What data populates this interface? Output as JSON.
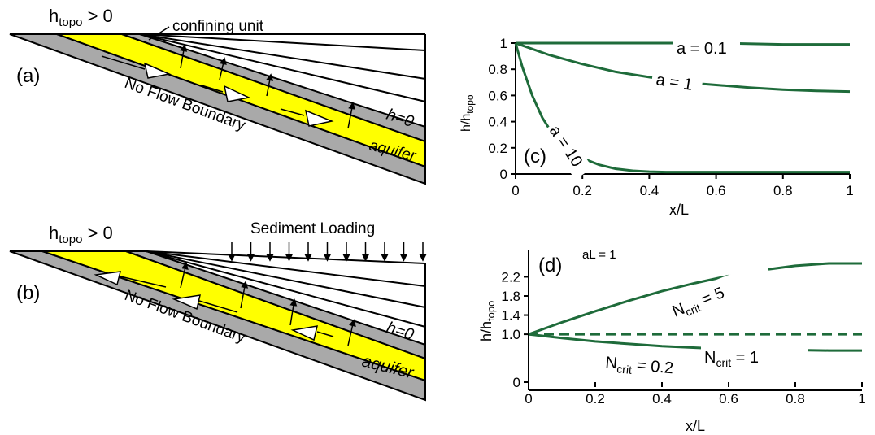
{
  "panel_a": {
    "panel_label": "(a)",
    "htopo": "h",
    "htopo_sub": "topo",
    "htopo_rest": " > 0",
    "confining_label": "confining unit",
    "boundary_label": "No Flow Boundary",
    "h0_label": "h=0",
    "aquifer_label": "aquifer"
  },
  "panel_b": {
    "panel_label": "(b)",
    "htopo": "h",
    "htopo_sub": "topo",
    "htopo_rest": " > 0",
    "loading_label": "Sediment Loading",
    "boundary_label": "No Flow Boundary",
    "h0_label": "h=0",
    "aquifer_label": "aquifer"
  },
  "colors": {
    "aquifer": "#ffff00",
    "confining": "#a9a9a9",
    "curve": "#1e6b3a"
  },
  "chart_data": [
    {
      "type": "line",
      "panel_label": "(c)",
      "xlabel": "x/L",
      "ylabel": "h/h",
      "ylabel_sub": "topo",
      "xlim": [
        0,
        1
      ],
      "ylim": [
        0,
        1
      ],
      "x_ticks": [
        "0",
        "0.2",
        "0.4",
        "0.6",
        "0.8",
        "1"
      ],
      "y_ticks": [
        "0",
        "0.2",
        "0.4",
        "0.6",
        "0.8",
        "1"
      ],
      "series": [
        {
          "name": "a = 0.1",
          "x": [
            0,
            0.2,
            0.4,
            0.6,
            0.8,
            1.0
          ],
          "y": [
            1.0,
            1.0,
            1.0,
            1.0,
            0.99,
            0.99
          ]
        },
        {
          "name": "a = 1",
          "x": [
            0,
            0.1,
            0.2,
            0.3,
            0.4,
            0.5,
            0.6,
            0.7,
            0.8,
            0.9,
            1.0
          ],
          "y": [
            1.0,
            0.91,
            0.84,
            0.78,
            0.74,
            0.7,
            0.68,
            0.66,
            0.645,
            0.635,
            0.63
          ]
        },
        {
          "name": "a = 10",
          "x": [
            0,
            0.02,
            0.05,
            0.08,
            0.1,
            0.15,
            0.2,
            0.25,
            0.3,
            0.35,
            0.4,
            0.45,
            0.5,
            0.6,
            0.8,
            1.0
          ],
          "y": [
            1.0,
            0.82,
            0.6,
            0.43,
            0.35,
            0.2,
            0.12,
            0.07,
            0.04,
            0.025,
            0.018,
            0.015,
            0.015,
            0.015,
            0.015,
            0.015
          ]
        }
      ]
    },
    {
      "type": "line",
      "panel_label": "(d)",
      "annotation": "aL = 1",
      "xlabel": "x/L",
      "ylabel": "h/h",
      "ylabel_sub": "topo",
      "xlim": [
        0,
        1
      ],
      "ylim": [
        0,
        2.7
      ],
      "x_ticks": [
        "0",
        "0.2",
        "0.4",
        "0.6",
        "0.8",
        "1"
      ],
      "y_ticks": [
        "0",
        "1.0",
        "1.4",
        "1.8",
        "2.2"
      ],
      "series": [
        {
          "name": "N",
          "name_sub": "crit",
          "name_rest": " = 5",
          "x": [
            0,
            0.1,
            0.2,
            0.3,
            0.4,
            0.5,
            0.6,
            0.7,
            0.8,
            0.9,
            1.0
          ],
          "y": [
            1.0,
            1.25,
            1.48,
            1.7,
            1.9,
            2.07,
            2.22,
            2.34,
            2.43,
            2.48,
            2.48
          ]
        },
        {
          "name": "N",
          "name_sub": "crit",
          "name_rest": " = 1",
          "dashed": true,
          "x": [
            0,
            1.0
          ],
          "y": [
            1.0,
            1.0
          ]
        },
        {
          "name": "N",
          "name_sub": "crit",
          "name_rest": " = 0.2",
          "x": [
            0,
            0.1,
            0.2,
            0.3,
            0.4,
            0.5,
            0.6,
            0.7,
            0.8,
            0.9,
            1.0
          ],
          "y": [
            1.0,
            0.92,
            0.85,
            0.8,
            0.75,
            0.72,
            0.69,
            0.68,
            0.67,
            0.66,
            0.66
          ]
        }
      ]
    }
  ]
}
